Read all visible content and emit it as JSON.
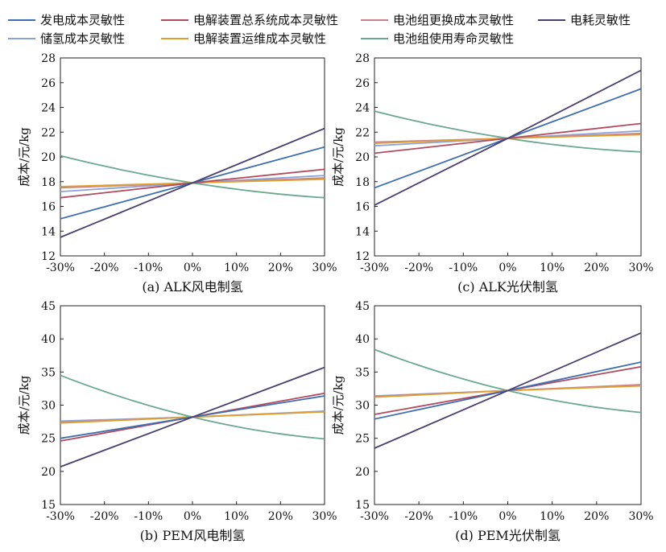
{
  "legend": {
    "items": [
      {
        "key": "gen",
        "label": "发电成本灵敏性",
        "color": "#3d6fb0"
      },
      {
        "key": "sys",
        "label": "电解装置总系统成本灵敏性",
        "color": "#b24a5e"
      },
      {
        "key": "bat",
        "label": "电池组更换成本灵敏性",
        "color": "#c9808c"
      },
      {
        "key": "elec",
        "label": "电耗灵敏性",
        "color": "#4a3e6e"
      },
      {
        "key": "h2",
        "label": "储氢成本灵敏性",
        "color": "#8aa2d9"
      },
      {
        "key": "om",
        "label": "电解装置运维成本灵敏性",
        "color": "#e0a030"
      },
      {
        "key": "life",
        "label": "电池组使用寿命灵敏性",
        "color": "#6aa890"
      }
    ]
  },
  "chart_data": [
    {
      "id": "a",
      "type": "line",
      "title": "(a) ALK风电制氢",
      "ylabel": "成本/元/kg",
      "xlabel": "",
      "x": [
        -30,
        0,
        30
      ],
      "x_tick_labels": [
        "-30%",
        "-20%",
        "-10%",
        "0%",
        "10%",
        "20%",
        "30%"
      ],
      "ylim": [
        12,
        28
      ],
      "y_ticks": [
        12,
        14,
        16,
        18,
        20,
        22,
        24,
        26,
        28
      ],
      "series": [
        {
          "key": "life",
          "values": [
            20.1,
            17.9,
            16.7
          ]
        },
        {
          "key": "h2",
          "values": [
            17.2,
            17.9,
            18.5
          ]
        },
        {
          "key": "bat",
          "values": [
            17.5,
            17.9,
            18.3
          ]
        },
        {
          "key": "om",
          "values": [
            17.6,
            17.9,
            18.2
          ]
        },
        {
          "key": "sys",
          "values": [
            16.7,
            17.9,
            19.0
          ]
        },
        {
          "key": "gen",
          "values": [
            15.0,
            17.9,
            20.8
          ]
        },
        {
          "key": "elec",
          "values": [
            13.5,
            17.9,
            22.3
          ]
        }
      ]
    },
    {
      "id": "c",
      "type": "line",
      "title": "(c) ALK光伏制氢",
      "ylabel": "成本/元/kg",
      "xlabel": "",
      "x": [
        -30,
        0,
        30
      ],
      "x_tick_labels": [
        "-30%",
        "-20%",
        "-10%",
        "0%",
        "10%",
        "20%",
        "30%"
      ],
      "ylim": [
        12,
        28
      ],
      "y_ticks": [
        12,
        14,
        16,
        18,
        20,
        22,
        24,
        26,
        28
      ],
      "series": [
        {
          "key": "life",
          "values": [
            23.7,
            21.5,
            20.4
          ]
        },
        {
          "key": "h2",
          "values": [
            20.9,
            21.5,
            22.1
          ]
        },
        {
          "key": "bat",
          "values": [
            21.2,
            21.5,
            21.9
          ]
        },
        {
          "key": "om",
          "values": [
            21.1,
            21.5,
            21.8
          ]
        },
        {
          "key": "sys",
          "values": [
            20.3,
            21.5,
            22.7
          ]
        },
        {
          "key": "gen",
          "values": [
            17.5,
            21.5,
            25.5
          ]
        },
        {
          "key": "elec",
          "values": [
            16.1,
            21.5,
            27.0
          ]
        }
      ]
    },
    {
      "id": "b",
      "type": "line",
      "title": "(b) PEM风电制氢",
      "ylabel": "成本/元/kg",
      "xlabel": "",
      "x": [
        -30,
        0,
        30
      ],
      "x_tick_labels": [
        "-30%",
        "-20%",
        "-10%",
        "0%",
        "10%",
        "20%",
        "30%"
      ],
      "ylim": [
        15,
        45
      ],
      "y_ticks": [
        15,
        20,
        25,
        30,
        35,
        40,
        45
      ],
      "series": [
        {
          "key": "life",
          "values": [
            34.5,
            28.2,
            24.9
          ]
        },
        {
          "key": "h2",
          "values": [
            27.6,
            28.2,
            29.1
          ]
        },
        {
          "key": "bat",
          "values": [
            27.4,
            28.2,
            29.0
          ]
        },
        {
          "key": "om",
          "values": [
            27.3,
            28.2,
            29.0
          ]
        },
        {
          "key": "sys",
          "values": [
            24.6,
            28.2,
            31.8
          ]
        },
        {
          "key": "gen",
          "values": [
            25.0,
            28.2,
            31.4
          ]
        },
        {
          "key": "elec",
          "values": [
            20.7,
            28.2,
            35.7
          ]
        }
      ]
    },
    {
      "id": "d",
      "type": "line",
      "title": "(d) PEM光伏制氢",
      "ylabel": "成本/元/kg",
      "xlabel": "",
      "x": [
        -30,
        0,
        30
      ],
      "x_tick_labels": [
        "-30%",
        "-20%",
        "-10%",
        "0%",
        "10%",
        "20%",
        "30%"
      ],
      "ylim": [
        15,
        45
      ],
      "y_ticks": [
        15,
        20,
        25,
        30,
        35,
        40,
        45
      ],
      "series": [
        {
          "key": "life",
          "values": [
            38.4,
            32.2,
            28.9
          ]
        },
        {
          "key": "h2",
          "values": [
            31.4,
            32.2,
            33.0
          ]
        },
        {
          "key": "bat",
          "values": [
            31.3,
            32.2,
            33.1
          ]
        },
        {
          "key": "om",
          "values": [
            31.2,
            32.2,
            32.9
          ]
        },
        {
          "key": "sys",
          "values": [
            28.6,
            32.2,
            35.8
          ]
        },
        {
          "key": "gen",
          "values": [
            27.9,
            32.2,
            36.5
          ]
        },
        {
          "key": "elec",
          "values": [
            23.5,
            32.2,
            40.9
          ]
        }
      ]
    }
  ]
}
